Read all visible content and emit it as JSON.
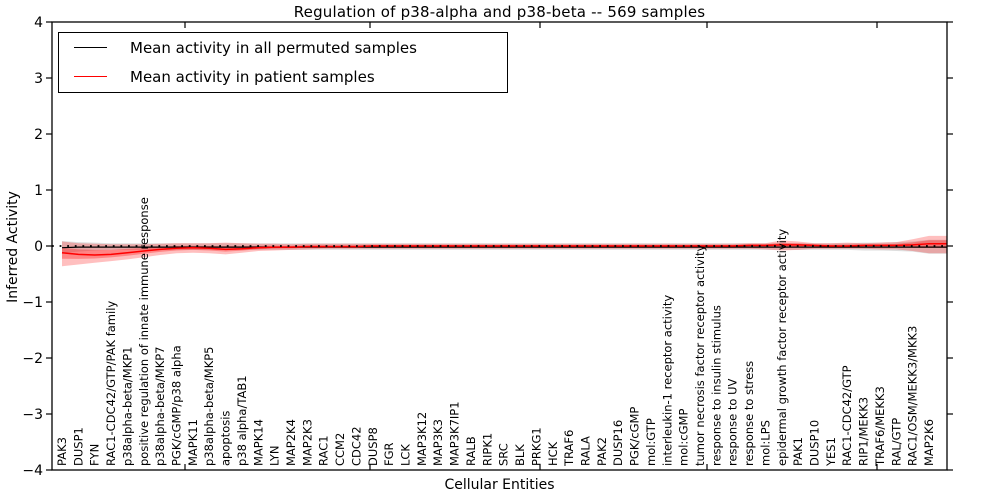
{
  "title": "Regulation of p38-alpha and p38-beta -- 569 samples",
  "legend": {
    "items": [
      {
        "label": "Mean activity in all permuted samples",
        "color": "#000000"
      },
      {
        "label": "Mean activity in patient samples",
        "color": "#ff0000"
      }
    ]
  },
  "chart_data": {
    "type": "line",
    "title": "Regulation of p38-alpha and p38-beta -- 569 samples",
    "xlabel": "Cellular Entities",
    "ylabel": "Inferred Activity",
    "ylim": [
      -4,
      4
    ],
    "yticks": [
      4,
      3,
      2,
      1,
      0,
      -1,
      -2,
      -3,
      -4
    ],
    "grid": false,
    "legend_position": "upper left",
    "zero_line_style": "dotted",
    "categories": [
      "PAK3",
      "DUSP1",
      "FYN",
      "RAC1-CDC42/GTP/PAK family",
      "p38alpha-beta/MKP1",
      "positive regulation of innate immune response",
      "p38alpha-beta/MKP7",
      "PGK/cGMP/p38 alpha",
      "MAPK11",
      "p38alpha-beta/MKP5",
      "apoptosis",
      "p38 alpha/TAB1",
      "MAPK14",
      "LYN",
      "MAP2K4",
      "MAP2K3",
      "RAC1",
      "CCM2",
      "CDC42",
      "DUSP8",
      "FGR",
      "LCK",
      "MAP3K12",
      "MAP3K3",
      "MAP3K7IP1",
      "RALB",
      "RIPK1",
      "SRC",
      "BLK",
      "PRKG1",
      "HCK",
      "TRAF6",
      "RALA",
      "PAK2",
      "DUSP16",
      "PGK/cGMP",
      "mol:GTP",
      "interleukin-1 receptor activity",
      "mol:cGMP",
      "tumor necrosis factor receptor activity",
      "response to insulin stimulus",
      "response to UV",
      "response to stress",
      "mol:LPS",
      "epidermal growth factor receptor activity",
      "PAK1",
      "DUSP10",
      "YES1",
      "RAC1-CDC42/GTP",
      "RIP1/MEKK3",
      "TRAF6/MEKK3",
      "RAL/GTP",
      "RAC1/OSM/MEKK3/MKK3",
      "MAP2K6"
    ],
    "series": [
      {
        "name": "Mean activity in all permuted samples",
        "color": "#000000",
        "values": [
          -0.03,
          -0.02,
          -0.02,
          -0.02,
          -0.02,
          -0.02,
          -0.02,
          -0.02,
          -0.02,
          -0.02,
          -0.02,
          -0.02,
          -0.02,
          -0.02,
          -0.02,
          -0.02,
          -0.02,
          -0.02,
          -0.02,
          -0.02,
          -0.02,
          -0.02,
          -0.02,
          -0.02,
          -0.02,
          -0.02,
          -0.02,
          -0.02,
          -0.02,
          -0.02,
          -0.02,
          -0.02,
          -0.02,
          -0.02,
          -0.02,
          -0.02,
          -0.02,
          -0.02,
          -0.02,
          -0.02,
          -0.02,
          -0.02,
          -0.02,
          -0.02,
          -0.02,
          -0.02,
          -0.02,
          -0.02,
          -0.02,
          -0.02,
          -0.02,
          -0.02,
          -0.02,
          -0.02
        ]
      },
      {
        "name": "Mean activity in patient samples",
        "color": "#ff0000",
        "values": [
          -0.12,
          -0.15,
          -0.16,
          -0.15,
          -0.12,
          -0.09,
          -0.06,
          -0.04,
          -0.03,
          -0.04,
          -0.06,
          -0.05,
          -0.03,
          -0.02,
          -0.02,
          -0.01,
          -0.01,
          -0.01,
          -0.01,
          0.0,
          0.0,
          0.0,
          0.0,
          0.0,
          0.0,
          0.0,
          0.0,
          0.0,
          0.0,
          0.0,
          0.0,
          0.0,
          0.0,
          0.0,
          0.0,
          0.0,
          0.0,
          0.0,
          0.0,
          0.0,
          0.0,
          0.0,
          0.01,
          0.01,
          0.02,
          0.02,
          0.01,
          0.0,
          0.0,
          0.01,
          0.01,
          0.01,
          0.02,
          0.04
        ]
      }
    ],
    "bands": [
      {
        "name": "permuted-confidence-band",
        "color": "#000000",
        "opacity": 0.13,
        "upper": [
          0.09,
          0.07,
          0.06,
          0.05,
          0.05,
          0.05,
          0.05,
          0.05,
          0.05,
          0.05,
          0.05,
          0.05,
          0.05,
          0.05,
          0.05,
          0.05,
          0.05,
          0.05,
          0.05,
          0.05,
          0.05,
          0.05,
          0.05,
          0.05,
          0.05,
          0.05,
          0.05,
          0.05,
          0.05,
          0.05,
          0.05,
          0.05,
          0.05,
          0.05,
          0.05,
          0.05,
          0.05,
          0.05,
          0.05,
          0.05,
          0.05,
          0.05,
          0.05,
          0.05,
          0.05,
          0.05,
          0.05,
          0.05,
          0.05,
          0.06,
          0.06,
          0.07,
          0.08,
          0.11
        ],
        "lower": [
          -0.13,
          -0.1,
          -0.08,
          -0.07,
          -0.07,
          -0.07,
          -0.07,
          -0.07,
          -0.07,
          -0.07,
          -0.07,
          -0.07,
          -0.07,
          -0.07,
          -0.07,
          -0.07,
          -0.07,
          -0.07,
          -0.07,
          -0.07,
          -0.07,
          -0.07,
          -0.07,
          -0.07,
          -0.07,
          -0.07,
          -0.07,
          -0.07,
          -0.07,
          -0.07,
          -0.07,
          -0.07,
          -0.07,
          -0.07,
          -0.07,
          -0.07,
          -0.07,
          -0.07,
          -0.07,
          -0.07,
          -0.07,
          -0.07,
          -0.07,
          -0.07,
          -0.07,
          -0.07,
          -0.07,
          -0.07,
          -0.07,
          -0.08,
          -0.08,
          -0.09,
          -0.1,
          -0.14
        ]
      },
      {
        "name": "patient-confidence-band",
        "color": "#ff0000",
        "opacity": 0.25,
        "upper": [
          0.08,
          0.05,
          0.04,
          0.03,
          0.03,
          0.03,
          0.04,
          0.05,
          0.05,
          0.05,
          0.06,
          0.05,
          0.04,
          0.04,
          0.03,
          0.04,
          0.04,
          0.04,
          0.04,
          0.04,
          0.04,
          0.04,
          0.04,
          0.04,
          0.04,
          0.04,
          0.04,
          0.04,
          0.04,
          0.04,
          0.04,
          0.04,
          0.04,
          0.04,
          0.04,
          0.04,
          0.04,
          0.04,
          0.04,
          0.04,
          0.04,
          0.04,
          0.05,
          0.05,
          0.1,
          0.08,
          0.05,
          0.05,
          0.06,
          0.05,
          0.06,
          0.07,
          0.12,
          0.18
        ],
        "lower": [
          -0.36,
          -0.33,
          -0.3,
          -0.27,
          -0.24,
          -0.2,
          -0.16,
          -0.13,
          -0.12,
          -0.13,
          -0.15,
          -0.12,
          -0.09,
          -0.08,
          -0.07,
          -0.06,
          -0.05,
          -0.05,
          -0.05,
          -0.05,
          -0.05,
          -0.05,
          -0.05,
          -0.05,
          -0.05,
          -0.05,
          -0.05,
          -0.05,
          -0.05,
          -0.05,
          -0.05,
          -0.05,
          -0.05,
          -0.05,
          -0.05,
          -0.05,
          -0.05,
          -0.05,
          -0.05,
          -0.05,
          -0.05,
          -0.05,
          -0.05,
          -0.06,
          -0.08,
          -0.07,
          -0.05,
          -0.05,
          -0.05,
          -0.05,
          -0.06,
          -0.06,
          -0.09,
          -0.13
        ]
      }
    ]
  }
}
